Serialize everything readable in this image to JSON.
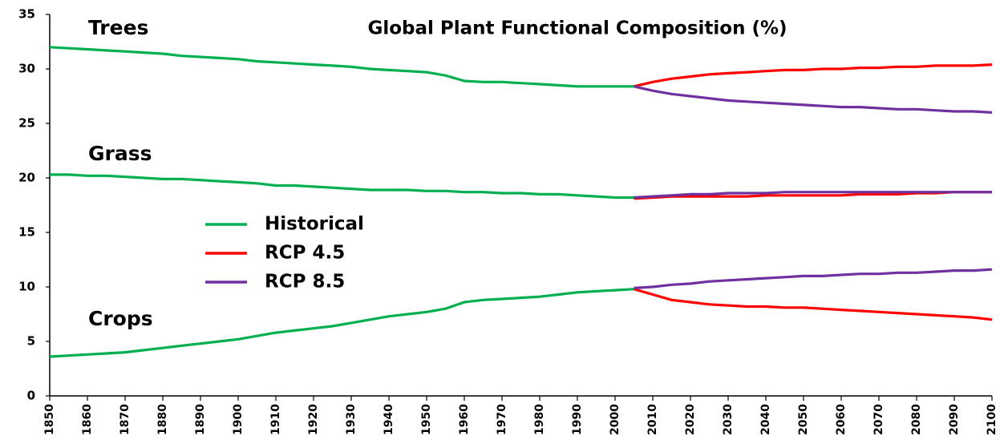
{
  "chart_data": {
    "type": "line",
    "title": "Global Plant Functional Composition (%)",
    "groups": [
      "Trees",
      "Grass",
      "Crops"
    ],
    "x": [
      1850,
      1855,
      1860,
      1865,
      1870,
      1875,
      1880,
      1885,
      1890,
      1895,
      1900,
      1905,
      1910,
      1915,
      1920,
      1925,
      1930,
      1935,
      1940,
      1945,
      1950,
      1955,
      1960,
      1965,
      1970,
      1975,
      1980,
      1985,
      1990,
      1995,
      2000,
      2005,
      2010,
      2015,
      2020,
      2025,
      2030,
      2035,
      2040,
      2045,
      2050,
      2055,
      2060,
      2065,
      2070,
      2075,
      2080,
      2085,
      2090,
      2095,
      2100
    ],
    "series": [
      {
        "name": "Historical",
        "color": "#00b050",
        "lines": [
          [
            32.0,
            31.9,
            31.8,
            31.7,
            31.6,
            31.5,
            31.4,
            31.2,
            31.1,
            31.0,
            30.9,
            30.7,
            30.6,
            30.5,
            30.4,
            30.3,
            30.2,
            30.0,
            29.9,
            29.8,
            29.7,
            29.4,
            28.9,
            28.8,
            28.8,
            28.7,
            28.6,
            28.5,
            28.4,
            28.4,
            28.4,
            28.4,
            null,
            null,
            null,
            null,
            null,
            null,
            null,
            null,
            null,
            null,
            null,
            null,
            null,
            null,
            null,
            null,
            null,
            null,
            null
          ],
          [
            20.3,
            20.3,
            20.2,
            20.2,
            20.1,
            20.0,
            19.9,
            19.9,
            19.8,
            19.7,
            19.6,
            19.5,
            19.3,
            19.3,
            19.2,
            19.1,
            19.0,
            18.9,
            18.9,
            18.9,
            18.8,
            18.8,
            18.7,
            18.7,
            18.6,
            18.6,
            18.5,
            18.5,
            18.4,
            18.3,
            18.2,
            18.2,
            null,
            null,
            null,
            null,
            null,
            null,
            null,
            null,
            null,
            null,
            null,
            null,
            null,
            null,
            null,
            null,
            null,
            null,
            null
          ],
          [
            3.6,
            3.7,
            3.8,
            3.9,
            4.0,
            4.2,
            4.4,
            4.6,
            4.8,
            5.0,
            5.2,
            5.5,
            5.8,
            6.0,
            6.2,
            6.4,
            6.7,
            7.0,
            7.3,
            7.5,
            7.7,
            8.0,
            8.6,
            8.8,
            8.9,
            9.0,
            9.1,
            9.3,
            9.5,
            9.6,
            9.7,
            9.8,
            null,
            null,
            null,
            null,
            null,
            null,
            null,
            null,
            null,
            null,
            null,
            null,
            null,
            null,
            null,
            null,
            null,
            null,
            null
          ]
        ]
      },
      {
        "name": "RCP 4.5",
        "color": "#ff0000",
        "lines": [
          [
            null,
            null,
            null,
            null,
            null,
            null,
            null,
            null,
            null,
            null,
            null,
            null,
            null,
            null,
            null,
            null,
            null,
            null,
            null,
            null,
            null,
            null,
            null,
            null,
            null,
            null,
            null,
            null,
            null,
            null,
            null,
            28.4,
            28.8,
            29.1,
            29.3,
            29.5,
            29.6,
            29.7,
            29.8,
            29.9,
            29.9,
            30.0,
            30.0,
            30.1,
            30.1,
            30.2,
            30.2,
            30.3,
            30.3,
            30.3,
            30.4
          ],
          [
            null,
            null,
            null,
            null,
            null,
            null,
            null,
            null,
            null,
            null,
            null,
            null,
            null,
            null,
            null,
            null,
            null,
            null,
            null,
            null,
            null,
            null,
            null,
            null,
            null,
            null,
            null,
            null,
            null,
            null,
            null,
            18.1,
            18.2,
            18.3,
            18.3,
            18.3,
            18.3,
            18.3,
            18.4,
            18.4,
            18.4,
            18.4,
            18.4,
            18.5,
            18.5,
            18.5,
            18.6,
            18.6,
            18.7,
            18.7,
            18.7
          ],
          [
            null,
            null,
            null,
            null,
            null,
            null,
            null,
            null,
            null,
            null,
            null,
            null,
            null,
            null,
            null,
            null,
            null,
            null,
            null,
            null,
            null,
            null,
            null,
            null,
            null,
            null,
            null,
            null,
            null,
            null,
            null,
            9.8,
            9.3,
            8.8,
            8.6,
            8.4,
            8.3,
            8.2,
            8.2,
            8.1,
            8.1,
            8.0,
            7.9,
            7.8,
            7.7,
            7.6,
            7.5,
            7.4,
            7.3,
            7.2,
            7.0
          ]
        ]
      },
      {
        "name": "RCP 8.5",
        "color": "#7030a0",
        "lines": [
          [
            null,
            null,
            null,
            null,
            null,
            null,
            null,
            null,
            null,
            null,
            null,
            null,
            null,
            null,
            null,
            null,
            null,
            null,
            null,
            null,
            null,
            null,
            null,
            null,
            null,
            null,
            null,
            null,
            null,
            null,
            null,
            28.4,
            28.0,
            27.7,
            27.5,
            27.3,
            27.1,
            27.0,
            26.9,
            26.8,
            26.7,
            26.6,
            26.5,
            26.5,
            26.4,
            26.3,
            26.3,
            26.2,
            26.1,
            26.1,
            26.0
          ],
          [
            null,
            null,
            null,
            null,
            null,
            null,
            null,
            null,
            null,
            null,
            null,
            null,
            null,
            null,
            null,
            null,
            null,
            null,
            null,
            null,
            null,
            null,
            null,
            null,
            null,
            null,
            null,
            null,
            null,
            null,
            null,
            18.2,
            18.3,
            18.4,
            18.5,
            18.5,
            18.6,
            18.6,
            18.6,
            18.7,
            18.7,
            18.7,
            18.7,
            18.7,
            18.7,
            18.7,
            18.7,
            18.7,
            18.7,
            18.7,
            18.7
          ],
          [
            null,
            null,
            null,
            null,
            null,
            null,
            null,
            null,
            null,
            null,
            null,
            null,
            null,
            null,
            null,
            null,
            null,
            null,
            null,
            null,
            null,
            null,
            null,
            null,
            null,
            null,
            null,
            null,
            null,
            null,
            null,
            9.9,
            10.0,
            10.2,
            10.3,
            10.5,
            10.6,
            10.7,
            10.8,
            10.9,
            11.0,
            11.0,
            11.1,
            11.2,
            11.2,
            11.3,
            11.3,
            11.4,
            11.5,
            11.5,
            11.6
          ]
        ]
      }
    ],
    "xlim": [
      1850,
      2100
    ],
    "xticks": [
      1850,
      1860,
      1870,
      1880,
      1890,
      1900,
      1910,
      1920,
      1930,
      1940,
      1950,
      1960,
      1970,
      1980,
      1990,
      2000,
      2010,
      2020,
      2030,
      2040,
      2050,
      2060,
      2070,
      2080,
      2090,
      2100
    ],
    "ylim": [
      0,
      35
    ],
    "yticks": [
      0,
      5,
      10,
      15,
      20,
      25,
      30,
      35
    ]
  }
}
